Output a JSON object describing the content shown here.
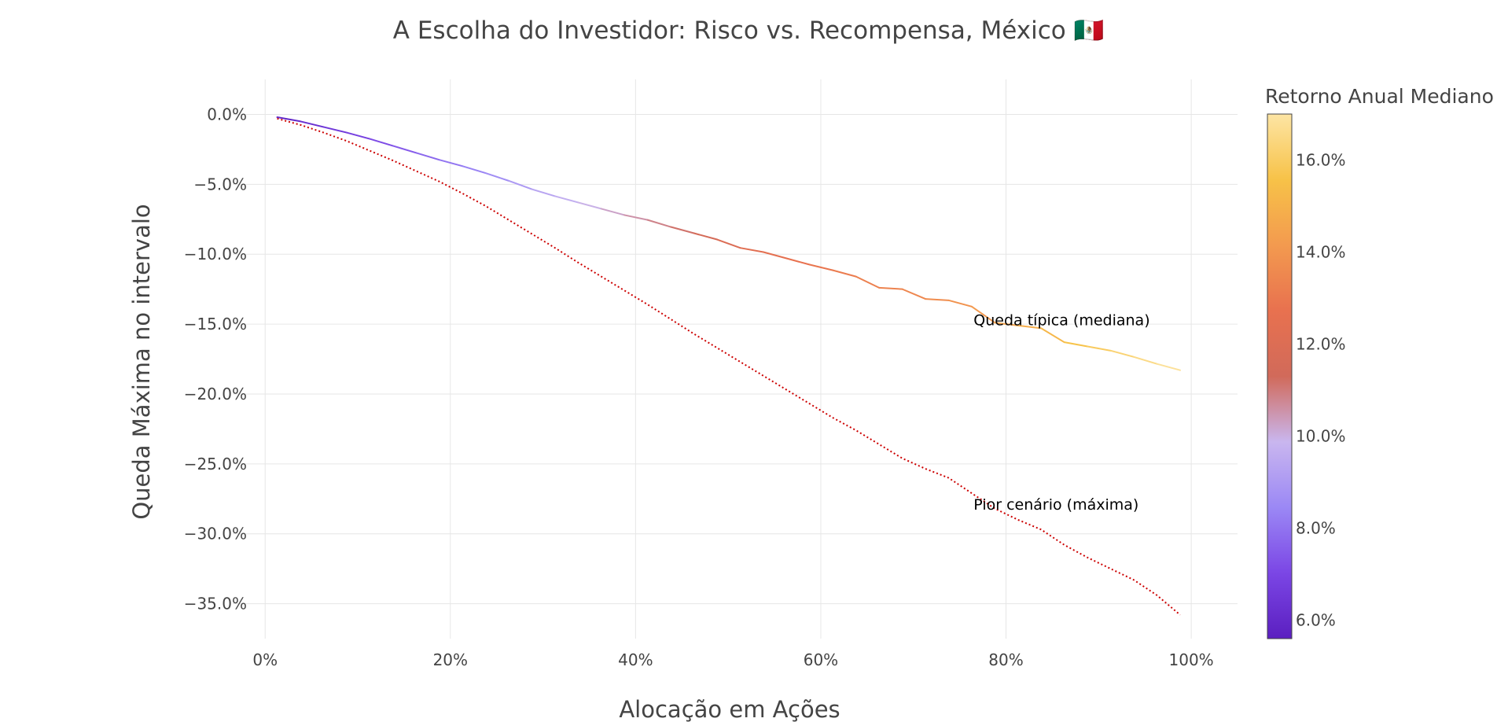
{
  "chart_data": {
    "type": "line",
    "title": "A Escolha do Investidor: Risco vs. Recompensa, México 🇲🇽",
    "xlabel": "Alocação em Ações",
    "ylabel": "Queda Máxima no intervalo",
    "xlim": [
      -3.5,
      105
    ],
    "ylim": [
      -37.5,
      2.5
    ],
    "x_ticks": [
      0,
      20,
      40,
      60,
      80,
      100
    ],
    "x_tick_labels": [
      "0%",
      "20%",
      "40%",
      "60%",
      "80%",
      "100%"
    ],
    "y_ticks": [
      0,
      -5,
      -10,
      -15,
      -20,
      -25,
      -30,
      -35
    ],
    "y_tick_labels": [
      "0.0%",
      "−5.0%",
      "−10.0%",
      "−15.0%",
      "−20.0%",
      "−25.0%",
      "−30.0%",
      "−35.0%"
    ],
    "grid": true,
    "series": [
      {
        "name": "Queda típica (mediana)",
        "style": "solid-colorscale",
        "x": [
          1.3,
          3.8,
          6.3,
          8.8,
          11.3,
          13.8,
          16.3,
          18.8,
          21.3,
          23.8,
          26.3,
          28.8,
          31.3,
          33.8,
          36.3,
          38.8,
          41.3,
          43.8,
          46.3,
          48.8,
          51.3,
          53.8,
          56.3,
          58.8,
          61.3,
          63.8,
          66.3,
          68.8,
          71.3,
          73.8,
          76.3,
          78.8,
          81.3,
          83.8,
          86.3,
          88.8,
          91.3,
          93.8,
          96.3,
          98.8
        ],
        "y": [
          -0.2,
          -0.5,
          -0.9,
          -1.3,
          -1.75,
          -2.25,
          -2.75,
          -3.25,
          -3.7,
          -4.2,
          -4.75,
          -5.35,
          -5.85,
          -6.3,
          -6.75,
          -7.2,
          -7.55,
          -8.05,
          -8.5,
          -8.95,
          -9.55,
          -9.85,
          -10.3,
          -10.75,
          -11.15,
          -11.6,
          -12.4,
          -12.5,
          -13.2,
          -13.3,
          -13.75,
          -14.9,
          -15.1,
          -15.3,
          -16.3,
          -16.6,
          -16.9,
          -17.35,
          -17.85,
          -18.3
        ],
        "median_annual_return": [
          5.8,
          6.1,
          6.4,
          6.7,
          7.0,
          7.3,
          7.6,
          7.9,
          8.2,
          8.5,
          8.8,
          9.2,
          9.5,
          9.8,
          10.1,
          10.4,
          10.7,
          11.0,
          11.3,
          11.7,
          12.2,
          12.4,
          12.6,
          12.8,
          13.0,
          13.2,
          13.3,
          13.4,
          13.6,
          13.8,
          14.0,
          14.3,
          14.7,
          15.0,
          15.4,
          15.8,
          16.1,
          16.4,
          16.7,
          17.0
        ]
      },
      {
        "name": "Pior cenário (máxima)",
        "style": "dotted",
        "color": "#cc0000",
        "x": [
          1.3,
          3.8,
          6.3,
          8.8,
          11.3,
          13.8,
          16.3,
          18.8,
          21.3,
          23.8,
          26.3,
          28.8,
          31.3,
          33.8,
          36.3,
          38.8,
          41.3,
          43.8,
          46.3,
          48.8,
          51.3,
          53.8,
          56.3,
          58.8,
          61.3,
          63.8,
          66.3,
          68.8,
          71.3,
          73.8,
          76.3,
          78.8,
          81.3,
          83.8,
          86.3,
          88.8,
          91.3,
          93.8,
          96.3,
          98.8
        ],
        "y": [
          -0.3,
          -0.75,
          -1.3,
          -1.9,
          -2.6,
          -3.3,
          -4.05,
          -4.8,
          -5.65,
          -6.55,
          -7.55,
          -8.55,
          -9.55,
          -10.6,
          -11.6,
          -12.6,
          -13.6,
          -14.65,
          -15.7,
          -16.7,
          -17.7,
          -18.7,
          -19.7,
          -20.7,
          -21.7,
          -22.6,
          -23.6,
          -24.6,
          -25.35,
          -26.0,
          -27.1,
          -28.2,
          -29.0,
          -29.7,
          -30.8,
          -31.7,
          -32.5,
          -33.3,
          -34.4,
          -35.8
        ]
      }
    ],
    "annotations": [
      {
        "text": "Queda típica (mediana)",
        "x": 76.5,
        "y": -14.8
      },
      {
        "text": "Pior cenário (máxima)",
        "x": 76.5,
        "y": -28.0
      }
    ],
    "colorbar": {
      "title": "Retorno Anual Mediano",
      "range": [
        5.6,
        17.0
      ],
      "ticks": [
        6,
        8,
        10,
        12,
        14,
        16
      ],
      "tick_labels": [
        "6.0%",
        "8.0%",
        "10.0%",
        "12.0%",
        "14.0%",
        "16.0%"
      ],
      "colorscale": [
        "#5b1fc0",
        "#7b46e5",
        "#9b88f5",
        "#c9b6ef",
        "#d16a5a",
        "#e8714f",
        "#f39a4f",
        "#f7c248",
        "#fde5a4"
      ]
    }
  }
}
